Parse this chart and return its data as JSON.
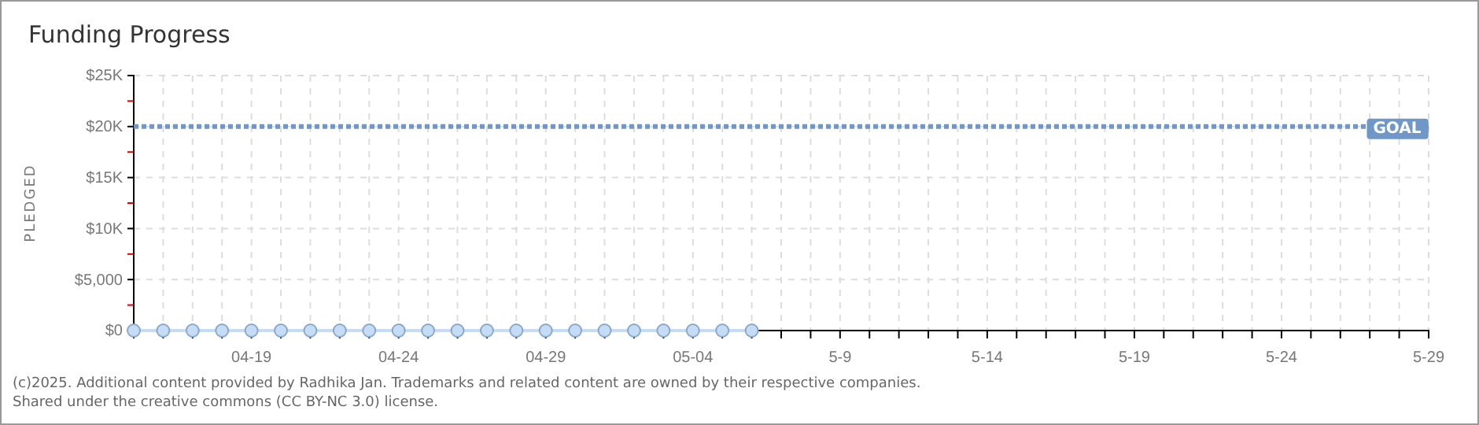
{
  "chart_data": {
    "type": "line",
    "title": "Funding Progress",
    "ylabel": "PLEDGED",
    "x": [
      "--04-15",
      "--04-16",
      "--04-17",
      "--04-18",
      "--04-19",
      "--04-20",
      "--04-21",
      "--04-22",
      "--04-23",
      "--04-24",
      "--04-25",
      "--04-26",
      "--04-27",
      "--04-28",
      "--04-29",
      "--04-30",
      "--05-01",
      "--05-02",
      "--05-03",
      "--05-04",
      "--05-05",
      "--05-06"
    ],
    "series": [
      {
        "color": "#c5dcf5",
        "values": [
          0,
          0,
          0,
          0,
          0,
          0,
          0,
          0,
          0,
          0,
          0,
          0,
          0,
          0,
          0,
          0,
          0,
          0,
          0,
          0,
          0,
          0
        ]
      }
    ],
    "xlim": [
      "--04-15",
      "--05-29"
    ],
    "xticks": [
      {
        "value": "--04-15",
        "label": null
      },
      {
        "value": "--04-16",
        "label": null
      },
      {
        "value": "--04-17",
        "label": null
      },
      {
        "value": "--04-18",
        "label": null
      },
      {
        "value": "--04-19",
        "label": "04-19"
      },
      {
        "value": "--04-20",
        "label": null
      },
      {
        "value": "--04-21",
        "label": null
      },
      {
        "value": "--04-22",
        "label": null
      },
      {
        "value": "--04-23",
        "label": null
      },
      {
        "value": "--04-24",
        "label": "04-24"
      },
      {
        "value": "--04-25",
        "label": null
      },
      {
        "value": "--04-26",
        "label": null
      },
      {
        "value": "--04-27",
        "label": null
      },
      {
        "value": "--04-28",
        "label": null
      },
      {
        "value": "--04-29",
        "label": "04-29"
      },
      {
        "value": "--04-30",
        "label": null
      },
      {
        "value": "--05-01",
        "label": null
      },
      {
        "value": "--05-02",
        "label": null
      },
      {
        "value": "--05-03",
        "label": null
      },
      {
        "value": "--05-04",
        "label": "05-04"
      },
      {
        "value": "--05-05",
        "label": null
      },
      {
        "value": "--05-06",
        "label": null
      },
      {
        "value": "--05-07",
        "label": null
      },
      {
        "value": "--05-08",
        "label": null
      },
      {
        "value": "--05-09",
        "label": "5-9"
      },
      {
        "value": "--05-10",
        "label": null
      },
      {
        "value": "--05-11",
        "label": null
      },
      {
        "value": "--05-12",
        "label": null
      },
      {
        "value": "--05-13",
        "label": null
      },
      {
        "value": "--05-14",
        "label": "5-14"
      },
      {
        "value": "--05-15",
        "label": null
      },
      {
        "value": "--05-16",
        "label": null
      },
      {
        "value": "--05-17",
        "label": null
      },
      {
        "value": "--05-18",
        "label": null
      },
      {
        "value": "--05-19",
        "label": "5-19"
      },
      {
        "value": "--05-20",
        "label": null
      },
      {
        "value": "--05-21",
        "label": null
      },
      {
        "value": "--05-22",
        "label": null
      },
      {
        "value": "--05-23",
        "label": null
      },
      {
        "value": "--05-24",
        "label": "5-24"
      },
      {
        "value": "--05-25",
        "label": null
      },
      {
        "value": "--05-26",
        "label": null
      },
      {
        "value": "--05-27",
        "label": null
      },
      {
        "value": "--05-28",
        "label": null
      },
      {
        "value": "--05-29",
        "label": "5-29"
      }
    ],
    "ylim": [
      0,
      25000
    ],
    "yticks": [
      {
        "value": 0,
        "label": "$0"
      },
      {
        "value": 2500,
        "label": null
      },
      {
        "value": 5000,
        "label": "$5,000"
      },
      {
        "value": 7500,
        "label": null
      },
      {
        "value": 10000,
        "label": "$10K"
      },
      {
        "value": 12500,
        "label": null
      },
      {
        "value": 15000,
        "label": "$15K"
      },
      {
        "value": 17500,
        "label": null
      },
      {
        "value": 20000,
        "label": "$20K"
      },
      {
        "value": 22500,
        "label": null
      },
      {
        "value": 25000,
        "label": "$25K"
      }
    ],
    "grid": true,
    "marker": "circle",
    "line_style": "solid",
    "ref_lines": [
      {
        "axis": "y",
        "value": 20000,
        "label": "GOAL",
        "color": "#6f98c8",
        "line_style": "dotted"
      }
    ],
    "annotations": [
      "(c)2025. Additional content provided by Radhika Jan. Trademarks and related content are owned by their respective companies.",
      "Shared under the creative commons (CC BY-NC 3.0) license."
    ]
  }
}
